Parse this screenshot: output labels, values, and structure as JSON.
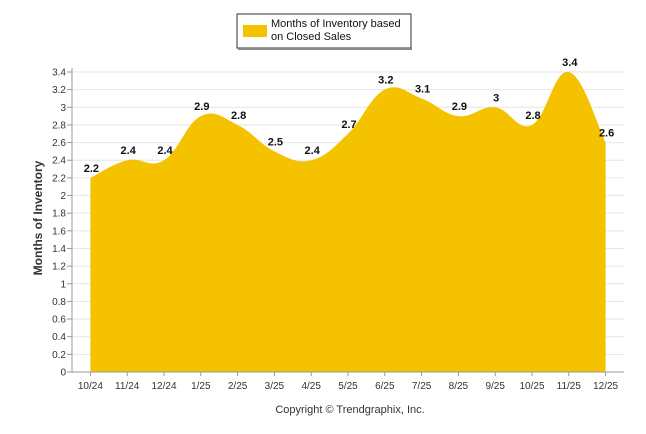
{
  "chart_data": {
    "type": "area",
    "categories": [
      "10/24",
      "11/24",
      "12/24",
      "1/25",
      "2/25",
      "3/25",
      "4/25",
      "5/25",
      "6/25",
      "7/25",
      "8/25",
      "9/25",
      "10/25",
      "11/25",
      "12/25"
    ],
    "series": [
      {
        "name": "Months of Inventory based on Closed Sales",
        "values": [
          2.2,
          2.4,
          2.4,
          2.9,
          2.8,
          2.5,
          2.4,
          2.7,
          3.2,
          3.1,
          2.9,
          3.0,
          2.8,
          3.4,
          2.6
        ]
      }
    ],
    "data_labels": [
      "2.2",
      "2.4",
      "2.4",
      "2.9",
      "2.8",
      "2.5",
      "2.4",
      "2.7",
      "3.2",
      "3.1",
      "2.9",
      "3",
      "2.8",
      "3.4",
      "2.6"
    ],
    "ylabel": "Months of Inventory",
    "xlabel": "",
    "ylim": [
      0,
      3.4
    ],
    "yticks": [
      "0",
      "0.2",
      "0.4",
      "0.6",
      "0.8",
      "1",
      "1.2",
      "1.4",
      "1.6",
      "1.8",
      "2",
      "2.2",
      "2.4",
      "2.6",
      "2.8",
      "3",
      "3.2",
      "3.4"
    ],
    "grid": true,
    "legend_position": "top-center",
    "colors": {
      "fill": "#f5c200",
      "legend_border": "#333333",
      "grid": "#e6e6e6"
    }
  },
  "legend": {
    "line1": "Months of Inventory based",
    "line2": "on Closed Sales"
  },
  "footer": {
    "copyright": "Copyright © Trendgraphix, Inc."
  }
}
